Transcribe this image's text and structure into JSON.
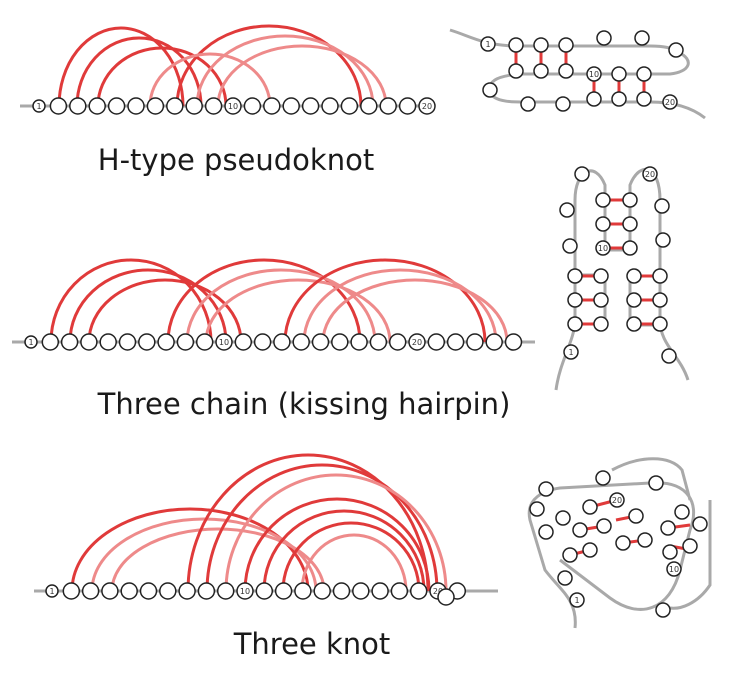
{
  "diagrams": [
    {
      "id": "h-type",
      "caption": "H-type pseudoknot",
      "start_label": "1",
      "labels": [
        {
          "index": 10,
          "text": "10"
        },
        {
          "index": 20,
          "text": "20"
        }
      ],
      "tertiary_labels": [
        "1",
        "10",
        "20"
      ]
    },
    {
      "id": "kissing",
      "caption": "Three chain (kissing hairpin)",
      "start_label": "1",
      "labels": [
        {
          "index": 10,
          "text": "10"
        },
        {
          "index": 20,
          "text": "20"
        }
      ],
      "tertiary_labels": [
        "1",
        "10",
        "20"
      ]
    },
    {
      "id": "three-knot",
      "caption": "Three knot",
      "start_label": "1",
      "labels": [
        {
          "index": 10,
          "text": "10"
        },
        {
          "index": 20,
          "text": "20"
        }
      ],
      "tertiary_labels": [
        "1",
        "10",
        "20"
      ]
    }
  ],
  "colors": {
    "arc_strong": "#e03a3a",
    "arc_light": "#ee8a8a",
    "backbone": "#a9a9a9",
    "node_stroke": "#222222"
  }
}
